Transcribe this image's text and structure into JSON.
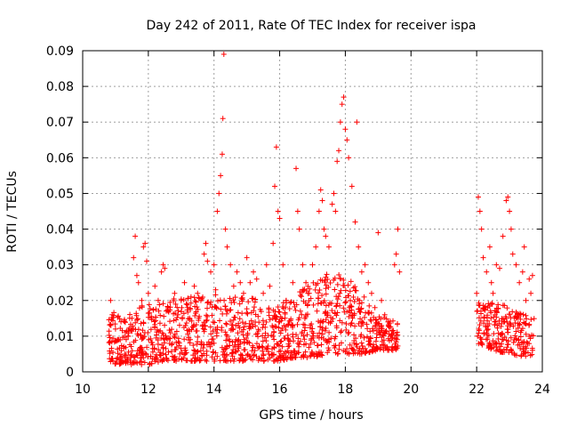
{
  "chart_data": {
    "type": "scatter",
    "title": "Day 242 of 2011, Rate Of TEC Index for receiver ispa",
    "xlabel": "GPS time / hours",
    "ylabel": "ROTI / TECUs",
    "xlim": [
      10,
      24
    ],
    "ylim": [
      0,
      0.09
    ],
    "x_ticks": [
      "10",
      "12",
      "14",
      "16",
      "18",
      "20",
      "22",
      "24"
    ],
    "y_ticks": [
      "0",
      "0.01",
      "0.02",
      "0.03",
      "0.04",
      "0.05",
      "0.06",
      "0.07",
      "0.08",
      "0.09"
    ],
    "grid": true,
    "marker": "+",
    "color": "#ff0000",
    "series": [
      {
        "points": [
          [
            10.85,
            0.02
          ],
          [
            10.9,
            0.016
          ],
          [
            11.0,
            0.012
          ],
          [
            11.1,
            0.009
          ],
          [
            11.3,
            0.011
          ],
          [
            11.5,
            0.015
          ],
          [
            11.55,
            0.032
          ],
          [
            11.6,
            0.038
          ],
          [
            11.65,
            0.027
          ],
          [
            11.7,
            0.025
          ],
          [
            11.8,
            0.02
          ],
          [
            11.85,
            0.035
          ],
          [
            11.9,
            0.036
          ],
          [
            11.95,
            0.031
          ],
          [
            12.0,
            0.022
          ],
          [
            12.1,
            0.015
          ],
          [
            12.2,
            0.024
          ],
          [
            12.3,
            0.02
          ],
          [
            12.4,
            0.028
          ],
          [
            12.45,
            0.03
          ],
          [
            12.5,
            0.029
          ],
          [
            12.6,
            0.018
          ],
          [
            12.8,
            0.022
          ],
          [
            12.9,
            0.016
          ],
          [
            13.0,
            0.02
          ],
          [
            13.1,
            0.025
          ],
          [
            13.2,
            0.018
          ],
          [
            13.3,
            0.021
          ],
          [
            13.4,
            0.024
          ],
          [
            13.5,
            0.022
          ],
          [
            13.6,
            0.02
          ],
          [
            13.7,
            0.033
          ],
          [
            13.75,
            0.036
          ],
          [
            13.8,
            0.031
          ],
          [
            13.9,
            0.028
          ],
          [
            14.0,
            0.03
          ],
          [
            14.05,
            0.023
          ],
          [
            14.1,
            0.045
          ],
          [
            14.15,
            0.05
          ],
          [
            14.2,
            0.055
          ],
          [
            14.25,
            0.061
          ],
          [
            14.27,
            0.071
          ],
          [
            14.3,
            0.089
          ],
          [
            14.35,
            0.04
          ],
          [
            14.4,
            0.035
          ],
          [
            14.5,
            0.03
          ],
          [
            14.6,
            0.024
          ],
          [
            14.7,
            0.028
          ],
          [
            14.8,
            0.025
          ],
          [
            14.9,
            0.022
          ],
          [
            15.0,
            0.032
          ],
          [
            15.1,
            0.025
          ],
          [
            15.2,
            0.028
          ],
          [
            15.3,
            0.026
          ],
          [
            15.5,
            0.022
          ],
          [
            15.6,
            0.03
          ],
          [
            15.7,
            0.024
          ],
          [
            15.8,
            0.036
          ],
          [
            15.85,
            0.052
          ],
          [
            15.9,
            0.063
          ],
          [
            15.95,
            0.045
          ],
          [
            16.0,
            0.043
          ],
          [
            16.1,
            0.03
          ],
          [
            16.2,
            0.02
          ],
          [
            16.4,
            0.025
          ],
          [
            16.5,
            0.057
          ],
          [
            16.55,
            0.045
          ],
          [
            16.6,
            0.04
          ],
          [
            16.7,
            0.03
          ],
          [
            16.8,
            0.025
          ],
          [
            16.9,
            0.022
          ],
          [
            17.0,
            0.03
          ],
          [
            17.1,
            0.035
          ],
          [
            17.2,
            0.045
          ],
          [
            17.25,
            0.051
          ],
          [
            17.3,
            0.048
          ],
          [
            17.35,
            0.04
          ],
          [
            17.4,
            0.038
          ],
          [
            17.5,
            0.035
          ],
          [
            17.6,
            0.047
          ],
          [
            17.65,
            0.05
          ],
          [
            17.7,
            0.045
          ],
          [
            17.75,
            0.059
          ],
          [
            17.8,
            0.062
          ],
          [
            17.85,
            0.07
          ],
          [
            17.9,
            0.075
          ],
          [
            17.95,
            0.077
          ],
          [
            18.0,
            0.068
          ],
          [
            18.05,
            0.065
          ],
          [
            18.1,
            0.06
          ],
          [
            18.2,
            0.052
          ],
          [
            18.3,
            0.042
          ],
          [
            18.35,
            0.07
          ],
          [
            18.4,
            0.035
          ],
          [
            18.5,
            0.028
          ],
          [
            18.6,
            0.03
          ],
          [
            18.7,
            0.025
          ],
          [
            18.8,
            0.022
          ],
          [
            18.9,
            0.018
          ],
          [
            19.0,
            0.039
          ],
          [
            19.1,
            0.02
          ],
          [
            19.2,
            0.016
          ],
          [
            19.3,
            0.014
          ],
          [
            19.5,
            0.03
          ],
          [
            19.55,
            0.033
          ],
          [
            19.6,
            0.04
          ],
          [
            19.65,
            0.028
          ],
          [
            22.0,
            0.022
          ],
          [
            22.05,
            0.049
          ],
          [
            22.1,
            0.045
          ],
          [
            22.15,
            0.04
          ],
          [
            22.2,
            0.032
          ],
          [
            22.3,
            0.028
          ],
          [
            22.4,
            0.035
          ],
          [
            22.45,
            0.025
          ],
          [
            22.5,
            0.022
          ],
          [
            22.6,
            0.03
          ],
          [
            22.7,
            0.029
          ],
          [
            22.8,
            0.038
          ],
          [
            22.9,
            0.048
          ],
          [
            22.95,
            0.049
          ],
          [
            23.0,
            0.045
          ],
          [
            23.05,
            0.04
          ],
          [
            23.1,
            0.033
          ],
          [
            23.2,
            0.03
          ],
          [
            23.3,
            0.025
          ],
          [
            23.4,
            0.028
          ],
          [
            23.45,
            0.035
          ],
          [
            23.5,
            0.02
          ],
          [
            23.6,
            0.026
          ],
          [
            23.65,
            0.022
          ],
          [
            23.7,
            0.027
          ]
        ],
        "dense_band": [
          [
            10.8,
            0.003,
            0.016
          ],
          [
            11.0,
            0.002,
            0.017
          ],
          [
            11.5,
            0.002,
            0.018
          ],
          [
            12.0,
            0.002,
            0.019
          ],
          [
            12.5,
            0.003,
            0.02
          ],
          [
            13.0,
            0.003,
            0.021
          ],
          [
            13.5,
            0.003,
            0.022
          ],
          [
            14.0,
            0.003,
            0.022
          ],
          [
            14.5,
            0.003,
            0.021
          ],
          [
            15.0,
            0.003,
            0.021
          ],
          [
            15.5,
            0.003,
            0.02
          ],
          [
            16.0,
            0.003,
            0.019
          ],
          [
            16.5,
            0.004,
            0.022
          ],
          [
            17.0,
            0.004,
            0.025
          ],
          [
            17.5,
            0.005,
            0.028
          ],
          [
            18.0,
            0.005,
            0.028
          ],
          [
            18.5,
            0.005,
            0.022
          ],
          [
            19.0,
            0.006,
            0.016
          ],
          [
            19.6,
            0.006,
            0.014
          ],
          [
            22.0,
            0.008,
            0.02
          ],
          [
            22.5,
            0.006,
            0.02
          ],
          [
            23.0,
            0.005,
            0.018
          ],
          [
            23.5,
            0.004,
            0.016
          ],
          [
            23.75,
            0.005,
            0.015
          ]
        ]
      }
    ]
  }
}
